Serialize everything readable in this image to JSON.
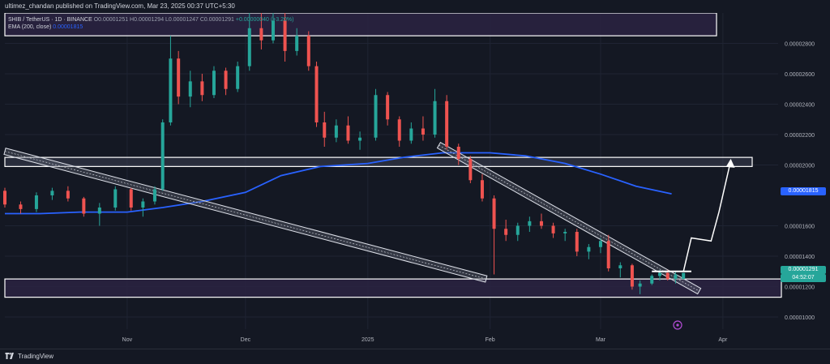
{
  "header": {
    "publish_line": "ultimez_chandan published on TradingView.com, Mar 23, 2025 00:37 UTC+5:30"
  },
  "legend": {
    "symbol": "SHIB / TetherUS · 1D · BINANCE",
    "ohlc": "O0.00001251 H0.00001294 L0.00001247 C0.00001291",
    "change": "+0.00000040 (+3.20%)",
    "ema_label": "EMA (200, close)",
    "ema_value": "0.00001815"
  },
  "price_axis": {
    "labels": [
      "0.00002800",
      "0.00002600",
      "0.00002400",
      "0.00002200",
      "0.00002000",
      "0.00001600",
      "0.00001400",
      "0.00001200",
      "0.00001000"
    ]
  },
  "time_axis": {
    "labels": [
      "Nov",
      "Dec",
      "2025",
      "Feb",
      "Mar",
      "Apr"
    ]
  },
  "tags": {
    "ema": "0.00001815",
    "last_price": "0.00001291",
    "countdown": "04:52:07"
  },
  "footer": {
    "brand": "TradingView"
  },
  "colors": {
    "background": "#141823",
    "up": "#26a69a",
    "down": "#ef5350",
    "ema": "#2962ff",
    "zone_fill": "#2a2342",
    "axis_text": "#b2b5be"
  },
  "chart_data": {
    "type": "candlestick",
    "title": "SHIB / TetherUS · 1D · BINANCE",
    "y_range": [
      9.2e-06,
      3e-05
    ],
    "y_ticks": [
      2.8e-05,
      2.6e-05,
      2.4e-05,
      2.2e-05,
      2e-05,
      1.6e-05,
      1.4e-05,
      1.2e-05,
      1e-05
    ],
    "x_range": [
      "2024-10-01",
      "2025-04-15"
    ],
    "x_ticks": [
      {
        "date": "2024-11-01",
        "label": "Nov"
      },
      {
        "date": "2024-12-01",
        "label": "Dec"
      },
      {
        "date": "2025-01-01",
        "label": "2025"
      },
      {
        "date": "2025-02-01",
        "label": "Feb"
      },
      {
        "date": "2025-03-01",
        "label": "Mar"
      },
      {
        "date": "2025-04-01",
        "label": "Apr"
      }
    ],
    "ohlc_last": {
      "open": 1.251e-05,
      "high": 1.294e-05,
      "low": 1.247e-05,
      "close": 1.291e-05
    },
    "ema_200": [
      [
        "2024-10-01",
        1.68e-05
      ],
      [
        "2024-10-10",
        1.68e-05
      ],
      [
        "2024-10-20",
        1.69e-05
      ],
      [
        "2024-11-01",
        1.69e-05
      ],
      [
        "2024-11-10",
        1.72e-05
      ],
      [
        "2024-11-20",
        1.76e-05
      ],
      [
        "2024-12-01",
        1.82e-05
      ],
      [
        "2024-12-10",
        1.93e-05
      ],
      [
        "2024-12-20",
        1.99e-05
      ],
      [
        "2025-01-01",
        2.01e-05
      ],
      [
        "2025-01-10",
        2.05e-05
      ],
      [
        "2025-01-20",
        2.08e-05
      ],
      [
        "2025-02-01",
        2.08e-05
      ],
      [
        "2025-02-10",
        2.06e-05
      ],
      [
        "2025-02-20",
        2.01e-05
      ],
      [
        "2025-03-01",
        1.94e-05
      ],
      [
        "2025-03-10",
        1.86e-05
      ],
      [
        "2025-03-19",
        1.81e-05
      ]
    ],
    "candles": [
      [
        "2024-10-01",
        1.83e-05,
        1.85e-05,
        1.72e-05,
        1.74e-05
      ],
      [
        "2024-10-05",
        1.74e-05,
        1.76e-05,
        1.68e-05,
        1.71e-05
      ],
      [
        "2024-10-09",
        1.71e-05,
        1.82e-05,
        1.69e-05,
        1.8e-05
      ],
      [
        "2024-10-13",
        1.8e-05,
        1.85e-05,
        1.77e-05,
        1.83e-05
      ],
      [
        "2024-10-17",
        1.83e-05,
        1.86e-05,
        1.76e-05,
        1.78e-05
      ],
      [
        "2024-10-21",
        1.78e-05,
        1.79e-05,
        1.66e-05,
        1.68e-05
      ],
      [
        "2024-10-25",
        1.68e-05,
        1.75e-05,
        1.6e-05,
        1.72e-05
      ],
      [
        "2024-10-29",
        1.72e-05,
        1.86e-05,
        1.7e-05,
        1.84e-05
      ],
      [
        "2024-11-02",
        1.84e-05,
        1.85e-05,
        1.7e-05,
        1.72e-05
      ],
      [
        "2024-11-05",
        1.72e-05,
        1.78e-05,
        1.66e-05,
        1.76e-05
      ],
      [
        "2024-11-08",
        1.76e-05,
        1.86e-05,
        1.74e-05,
        1.84e-05
      ],
      [
        "2024-11-10",
        1.84e-05,
        2.3e-05,
        1.83e-05,
        2.28e-05
      ],
      [
        "2024-11-12",
        2.28e-05,
        2.85e-05,
        2.26e-05,
        2.7e-05
      ],
      [
        "2024-11-14",
        2.7e-05,
        2.75e-05,
        2.4e-05,
        2.45e-05
      ],
      [
        "2024-11-17",
        2.45e-05,
        2.62e-05,
        2.38e-05,
        2.55e-05
      ],
      [
        "2024-11-20",
        2.55e-05,
        2.6e-05,
        2.42e-05,
        2.46e-05
      ],
      [
        "2024-11-23",
        2.46e-05,
        2.65e-05,
        2.44e-05,
        2.62e-05
      ],
      [
        "2024-11-26",
        2.62e-05,
        2.64e-05,
        2.46e-05,
        2.5e-05
      ],
      [
        "2024-11-29",
        2.5e-05,
        2.68e-05,
        2.48e-05,
        2.65e-05
      ],
      [
        "2024-12-02",
        2.65e-05,
        3e-05,
        2.62e-05,
        2.9e-05
      ],
      [
        "2024-12-05",
        2.9e-05,
        3e-05,
        2.76e-05,
        2.82e-05
      ],
      [
        "2024-12-08",
        2.82e-05,
        3e-05,
        2.8e-05,
        2.95e-05
      ],
      [
        "2024-12-11",
        2.95e-05,
        3e-05,
        2.68e-05,
        2.75e-05
      ],
      [
        "2024-12-14",
        2.75e-05,
        2.9e-05,
        2.72e-05,
        2.85e-05
      ],
      [
        "2024-12-17",
        2.85e-05,
        2.88e-05,
        2.62e-05,
        2.65e-05
      ],
      [
        "2024-12-19",
        2.65e-05,
        2.68e-05,
        2.25e-05,
        2.28e-05
      ],
      [
        "2024-12-21",
        2.28e-05,
        2.35e-05,
        2.12e-05,
        2.18e-05
      ],
      [
        "2024-12-24",
        2.18e-05,
        2.3e-05,
        2.15e-05,
        2.26e-05
      ],
      [
        "2024-12-27",
        2.26e-05,
        2.32e-05,
        2.14e-05,
        2.16e-05
      ],
      [
        "2024-12-30",
        2.16e-05,
        2.22e-05,
        2.1e-05,
        2.18e-05
      ],
      [
        "2025-01-03",
        2.18e-05,
        2.5e-05,
        2.16e-05,
        2.46e-05
      ],
      [
        "2025-01-06",
        2.46e-05,
        2.48e-05,
        2.26e-05,
        2.3e-05
      ],
      [
        "2025-01-09",
        2.3e-05,
        2.32e-05,
        2.12e-05,
        2.16e-05
      ],
      [
        "2025-01-12",
        2.16e-05,
        2.28e-05,
        2.14e-05,
        2.24e-05
      ],
      [
        "2025-01-15",
        2.24e-05,
        2.32e-05,
        2.16e-05,
        2.2e-05
      ],
      [
        "2025-01-18",
        2.2e-05,
        2.5e-05,
        2.18e-05,
        2.42e-05
      ],
      [
        "2025-01-21",
        2.42e-05,
        2.46e-05,
        2.1e-05,
        2.12e-05
      ],
      [
        "2025-01-24",
        2.12e-05,
        2.14e-05,
        2e-05,
        2.04e-05
      ],
      [
        "2025-01-27",
        2.04e-05,
        2.06e-05,
        1.88e-05,
        1.9e-05
      ],
      [
        "2025-01-30",
        1.9e-05,
        1.94e-05,
        1.76e-05,
        1.78e-05
      ],
      [
        "2025-02-02",
        1.78e-05,
        1.8e-05,
        1.28e-05,
        1.58e-05
      ],
      [
        "2025-02-05",
        1.58e-05,
        1.64e-05,
        1.5e-05,
        1.54e-05
      ],
      [
        "2025-02-08",
        1.54e-05,
        1.62e-05,
        1.5e-05,
        1.6e-05
      ],
      [
        "2025-02-11",
        1.6e-05,
        1.66e-05,
        1.56e-05,
        1.63e-05
      ],
      [
        "2025-02-14",
        1.63e-05,
        1.68e-05,
        1.58e-05,
        1.6e-05
      ],
      [
        "2025-02-17",
        1.6e-05,
        1.62e-05,
        1.52e-05,
        1.55e-05
      ],
      [
        "2025-02-20",
        1.55e-05,
        1.58e-05,
        1.5e-05,
        1.56e-05
      ],
      [
        "2025-02-23",
        1.56e-05,
        1.58e-05,
        1.4e-05,
        1.43e-05
      ],
      [
        "2025-02-26",
        1.43e-05,
        1.48e-05,
        1.38e-05,
        1.46e-05
      ],
      [
        "2025-03-01",
        1.46e-05,
        1.52e-05,
        1.42e-05,
        1.5e-05
      ],
      [
        "2025-03-03",
        1.5e-05,
        1.54e-05,
        1.3e-05,
        1.32e-05
      ],
      [
        "2025-03-06",
        1.32e-05,
        1.36e-05,
        1.26e-05,
        1.34e-05
      ],
      [
        "2025-03-09",
        1.34e-05,
        1.35e-05,
        1.18e-05,
        1.2e-05
      ],
      [
        "2025-03-11",
        1.2e-05,
        1.24e-05,
        1.15e-05,
        1.22e-05
      ],
      [
        "2025-03-14",
        1.22e-05,
        1.28e-05,
        1.21e-05,
        1.27e-05
      ],
      [
        "2025-03-16",
        1.27e-05,
        1.31e-05,
        1.24e-05,
        1.29e-05
      ],
      [
        "2025-03-18",
        1.29e-05,
        1.31e-05,
        1.24e-05,
        1.25e-05
      ],
      [
        "2025-03-20",
        1.25e-05,
        1.3e-05,
        1.22e-05,
        1.28e-05
      ],
      [
        "2025-03-22",
        1.25e-05,
        1.29e-05,
        1.25e-05,
        1.29e-05
      ]
    ],
    "horizontal_zones": [
      {
        "from": 1.99e-05,
        "to": 2.05e-05
      },
      {
        "from": 1.13e-05,
        "to": 1.25e-05
      },
      {
        "from": 2.85e-05,
        "to": 3e-05
      }
    ],
    "projection_path": [
      [
        "2025-03-22",
        1.3e-05
      ],
      [
        "2025-03-24",
        1.52e-05
      ],
      [
        "2025-03-29",
        1.5e-05
      ],
      [
        "2025-03-31",
        1.69e-05
      ],
      [
        "2025-04-03",
        2.03e-05
      ]
    ]
  }
}
